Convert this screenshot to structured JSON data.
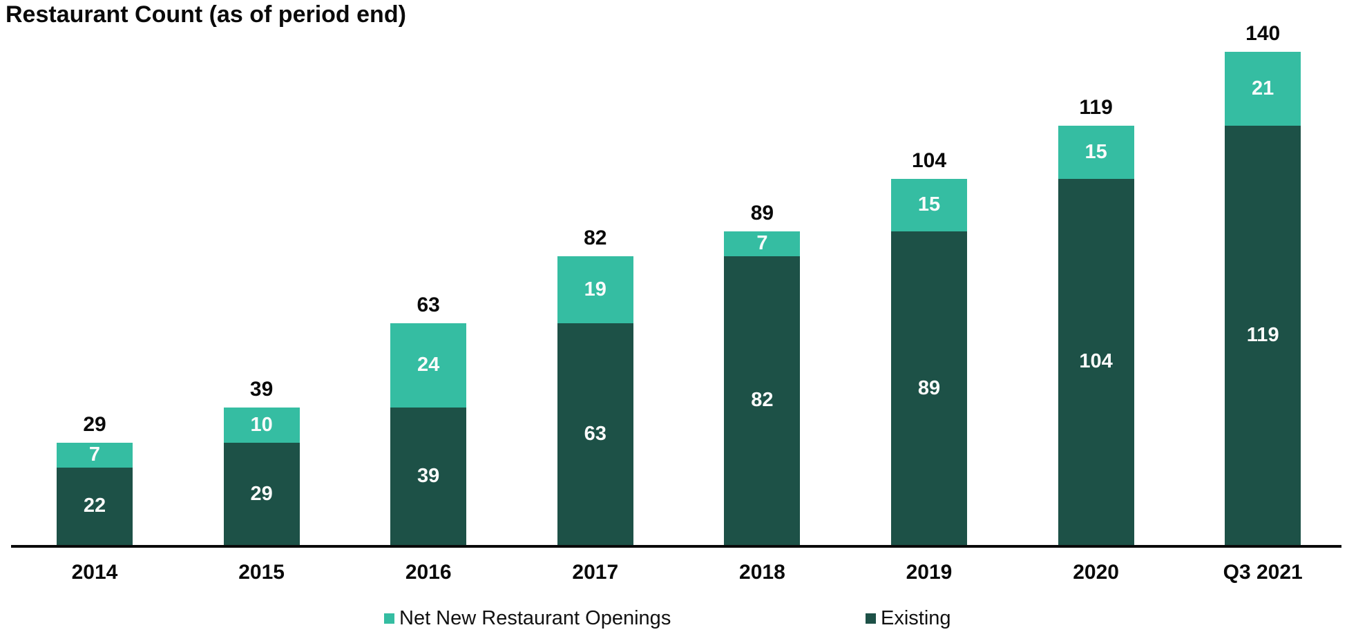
{
  "title": "Restaurant Count (as of period end)",
  "legend": {
    "items": [
      {
        "label": "Net New Restaurant Openings",
        "color": "#35BDA2"
      },
      {
        "label": "Existing",
        "color": "#1D5147"
      }
    ]
  },
  "chart_data": {
    "type": "bar",
    "stacked": true,
    "title": "Restaurant Count (as of period end)",
    "categories": [
      "2014",
      "2015",
      "2016",
      "2017",
      "2018",
      "2019",
      "2020",
      "Q3 2021"
    ],
    "series": [
      {
        "name": "Existing",
        "color": "#1D5147",
        "values": [
          22,
          29,
          39,
          63,
          82,
          89,
          104,
          119
        ]
      },
      {
        "name": "Net New Restaurant Openings",
        "color": "#35BDA2",
        "values": [
          7,
          10,
          24,
          19,
          7,
          15,
          15,
          21
        ]
      }
    ],
    "totals": [
      29,
      39,
      63,
      82,
      89,
      104,
      119,
      140
    ],
    "ylim": [
      0,
      155
    ],
    "grid": false,
    "legend_position": "bottom",
    "value_labels": "white-inside-segments",
    "total_labels": "above-bars",
    "axis_color": "#0a0a0a",
    "label_color_inside": "#fbfbfb",
    "label_color_outside": "#0a0a0a"
  }
}
